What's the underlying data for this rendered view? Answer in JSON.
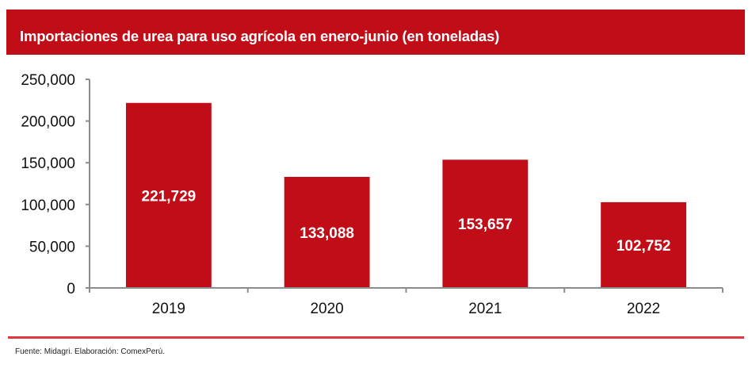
{
  "title": "Importaciones de urea para uso agrícola en enero-junio (en toneladas)",
  "source": "Fuente: Midagri. Elaboración: ComexPerú.",
  "colors": {
    "bar": "#c00d17",
    "title_bar": "#c00d17",
    "rule": "#e2363e",
    "axis": "#8c8c8c"
  },
  "chart_data": {
    "type": "bar",
    "title": "Importaciones de urea para uso agrícola en enero-junio (en toneladas)",
    "xlabel": "",
    "ylabel": "",
    "categories": [
      "2019",
      "2020",
      "2021",
      "2022"
    ],
    "values": [
      221729,
      133088,
      153657,
      102752
    ],
    "data_labels": [
      "221,729",
      "133,088",
      "153,657",
      "102,752"
    ],
    "ylim": [
      0,
      250000
    ],
    "yticks": [
      0,
      50000,
      100000,
      150000,
      200000,
      250000
    ],
    "ytick_labels": [
      "0",
      "50,000",
      "100,000",
      "150,000",
      "200,000",
      "250,000"
    ],
    "grid": false,
    "legend": "none"
  }
}
